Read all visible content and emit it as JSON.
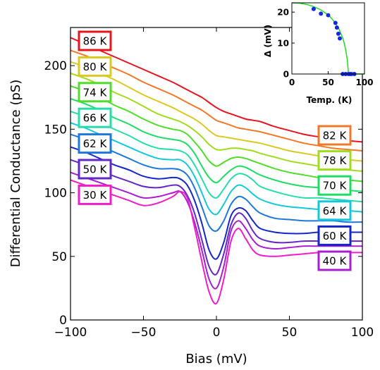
{
  "chart_data": [
    {
      "type": "line",
      "title": "",
      "xlabel": "Bias (mV)",
      "ylabel": "Differential Conductance (pS)",
      "xlim": [
        -100,
        100
      ],
      "ylim": [
        0,
        230
      ],
      "xticks": [
        -100,
        -50,
        0,
        50,
        100
      ],
      "xtick_labels": [
        "−100",
        "−50",
        "0",
        "50",
        "100"
      ],
      "yticks": [
        0,
        50,
        100,
        150,
        200
      ],
      "ytick_labels": [
        "0",
        "50",
        "100",
        "150",
        "200"
      ],
      "grid": false,
      "x": [
        -100,
        -90,
        -80,
        -70,
        -60,
        -50,
        -40,
        -30,
        -25,
        -20,
        -15,
        -10,
        -5,
        0,
        5,
        10,
        15,
        20,
        25,
        30,
        40,
        50,
        60,
        70,
        80,
        90,
        100
      ],
      "series": [
        {
          "name": "86 K",
          "color": "#e8141e",
          "values": [
            222,
            217,
            212,
            207,
            202,
            197,
            192,
            187,
            184,
            181,
            178,
            175,
            171,
            167,
            164,
            162,
            160,
            158,
            157,
            156,
            152,
            149,
            146,
            144,
            142,
            141,
            140
          ]
        },
        {
          "name": "82 K",
          "color": "#f07828",
          "values": [
            212,
            208,
            203,
            198,
            193,
            187,
            182,
            177,
            174,
            171,
            168,
            165,
            161,
            157,
            155,
            153,
            151,
            150,
            149,
            148,
            145,
            142,
            139,
            137,
            135,
            134,
            133
          ]
        },
        {
          "name": "80 K",
          "color": "#dcc820",
          "values": [
            203,
            199,
            194,
            189,
            183,
            177,
            172,
            167,
            164,
            161,
            158,
            154,
            149,
            145,
            144,
            143,
            142,
            141,
            140,
            139,
            136,
            133,
            131,
            129,
            127,
            126,
            125
          ]
        },
        {
          "name": "78 K",
          "color": "#a0dc1e",
          "values": [
            194,
            190,
            185,
            179,
            174,
            168,
            162,
            158,
            156,
            153,
            149,
            144,
            138,
            134,
            134,
            135,
            135,
            134,
            133,
            131,
            128,
            125,
            123,
            121,
            119,
            118,
            117
          ]
        },
        {
          "name": "74 K",
          "color": "#50dc28",
          "values": [
            184,
            180,
            175,
            169,
            164,
            158,
            153,
            150,
            149,
            146,
            140,
            133,
            125,
            121,
            124,
            127,
            128,
            127,
            125,
            123,
            119,
            116,
            114,
            112,
            111,
            110,
            109
          ]
        },
        {
          "name": "70 K",
          "color": "#1edc64",
          "values": [
            174,
            170,
            165,
            159,
            154,
            148,
            144,
            142,
            141,
            138,
            131,
            121,
            112,
            108,
            113,
            118,
            121,
            120,
            117,
            114,
            110,
            107,
            105,
            104,
            103,
            102,
            101
          ]
        },
        {
          "name": "66 K",
          "color": "#28dcaa",
          "values": [
            164,
            160,
            155,
            150,
            145,
            139,
            135,
            134,
            133,
            130,
            122,
            111,
            100,
            96,
            103,
            111,
            115,
            114,
            110,
            105,
            101,
            98,
            96,
            96,
            95,
            94,
            93
          ]
        },
        {
          "name": "64 K",
          "color": "#14c8dc",
          "values": [
            155,
            151,
            146,
            141,
            136,
            131,
            127,
            126,
            126,
            122,
            113,
            100,
            87,
            83,
            91,
            101,
            106,
            104,
            99,
            95,
            91,
            89,
            88,
            87,
            87,
            86,
            85
          ]
        },
        {
          "name": "62 K",
          "color": "#1e78dc",
          "values": [
            146,
            142,
            137,
            132,
            127,
            122,
            119,
            119,
            118,
            114,
            104,
            89,
            74,
            70,
            78,
            91,
            97,
            95,
            89,
            84,
            80,
            79,
            78,
            78,
            78,
            77,
            77
          ]
        },
        {
          "name": "60 K",
          "color": "#1428c8",
          "values": [
            136,
            132,
            127,
            122,
            118,
            113,
            111,
            112,
            111,
            106,
            94,
            76,
            55,
            48,
            61,
            82,
            88,
            86,
            78,
            72,
            69,
            68,
            68,
            69,
            69,
            69,
            69
          ]
        },
        {
          "name": "50 K",
          "color": "#6428c8",
          "values": [
            126,
            122,
            118,
            113,
            109,
            105,
            104,
            106,
            105,
            98,
            84,
            63,
            42,
            36,
            52,
            75,
            84,
            80,
            70,
            64,
            61,
            61,
            62,
            62,
            62,
            62,
            62
          ]
        },
        {
          "name": "40 K",
          "color": "#aa1ed2",
          "values": [
            116,
            112,
            108,
            104,
            100,
            96,
            97,
            100,
            101,
            93,
            77,
            55,
            32,
            25,
            42,
            70,
            78,
            72,
            63,
            58,
            56,
            57,
            58,
            58,
            58,
            58,
            58
          ]
        },
        {
          "name": "30 K",
          "color": "#f01ec8",
          "values": [
            110,
            106,
            102,
            98,
            94,
            90,
            92,
            97,
            101,
            96,
            73,
            46,
            22,
            13,
            32,
            62,
            72,
            64,
            55,
            51,
            50,
            51,
            52,
            53,
            53,
            53,
            53
          ]
        }
      ],
      "labels_left": [
        "86 K",
        "80 K",
        "74 K",
        "66 K",
        "62 K",
        "50 K",
        "30 K"
      ],
      "labels_right": [
        "82 K",
        "78 K",
        "70 K",
        "64 K",
        "60 K",
        "40 K"
      ]
    },
    {
      "type": "scatter",
      "title": "",
      "xlabel": "Temp. (K)",
      "ylabel": "Δ (mV)",
      "xlim": [
        0,
        100
      ],
      "ylim": [
        0,
        23
      ],
      "xticks": [
        0,
        50,
        100
      ],
      "xtick_labels": [
        "0",
        "50",
        "100"
      ],
      "yticks": [
        0,
        10,
        20
      ],
      "ytick_labels": [
        "0",
        "10",
        "20"
      ],
      "points": {
        "x": [
          30,
          40,
          50,
          60,
          62,
          64,
          66,
          70,
          74,
          78,
          80,
          82,
          86
        ],
        "y": [
          21,
          19.5,
          19,
          16.5,
          15,
          13,
          11.5,
          0,
          0,
          0,
          0,
          0,
          0
        ],
        "color": "#1428e6"
      },
      "fit_curve": {
        "color": "#1edc1e",
        "x": [
          0,
          10,
          20,
          30,
          40,
          50,
          55,
          60,
          65,
          70,
          72,
          74,
          76,
          77,
          78,
          80,
          90,
          100
        ],
        "y": [
          23,
          22.9,
          22.5,
          21.8,
          20.7,
          19.1,
          17.9,
          16.4,
          14.5,
          11.6,
          10.0,
          8.0,
          5.1,
          2.9,
          0,
          0,
          0,
          0
        ]
      }
    }
  ]
}
